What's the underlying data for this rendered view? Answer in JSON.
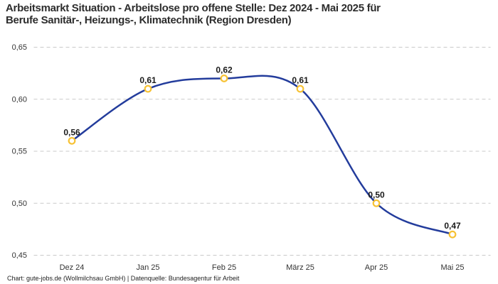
{
  "header": {
    "title_lines": [
      "Arbeitsmarkt Situation - Arbeitslose pro offene Stelle: Dez 2024 - Mai 2025 für",
      "Berufe Sanitär-, Heizungs-, Klimatechnik (Region Dresden)"
    ]
  },
  "chart_data": {
    "type": "line",
    "title": "Arbeitsmarkt Situation - Arbeitslose pro offene Stelle: Dez 2024 - Mai 2025 für Berufe Sanitär-, Heizungs-, Klimatechnik (Region Dresden)",
    "curve": "spline",
    "categories": [
      "Dez 24",
      "Jan 25",
      "Feb 25",
      "März 25",
      "Apr 25",
      "Mai 25"
    ],
    "values": [
      0.56,
      0.61,
      0.62,
      0.61,
      0.5,
      0.47
    ],
    "value_labels": [
      "0,56",
      "0,61",
      "0,62",
      "0,61",
      "0,50",
      "0,47"
    ],
    "xlabel": "",
    "ylabel": "",
    "ylim": [
      0.45,
      0.65
    ],
    "yticks": [
      0.45,
      0.5,
      0.55,
      0.6,
      0.65
    ],
    "ytick_labels": [
      "0,45",
      "0,50",
      "0,55",
      "0,60",
      "0,65"
    ],
    "grid": "horizontal-dashed",
    "legend": "none",
    "colors": {
      "line": "#233c9c",
      "marker_ring": "#f7c234",
      "marker_fill": "#ffffff",
      "grid": "#c9c9c9",
      "axis_text": "#333333",
      "data_label": "#1a1a1a",
      "title_text": "#2d2d2d",
      "background": "#ffffff"
    }
  },
  "footer": {
    "text": "Chart: gute-jobs.de (Wollmilchsau GmbH) | Datenquelle: Bundesagentur für Arbeit"
  }
}
